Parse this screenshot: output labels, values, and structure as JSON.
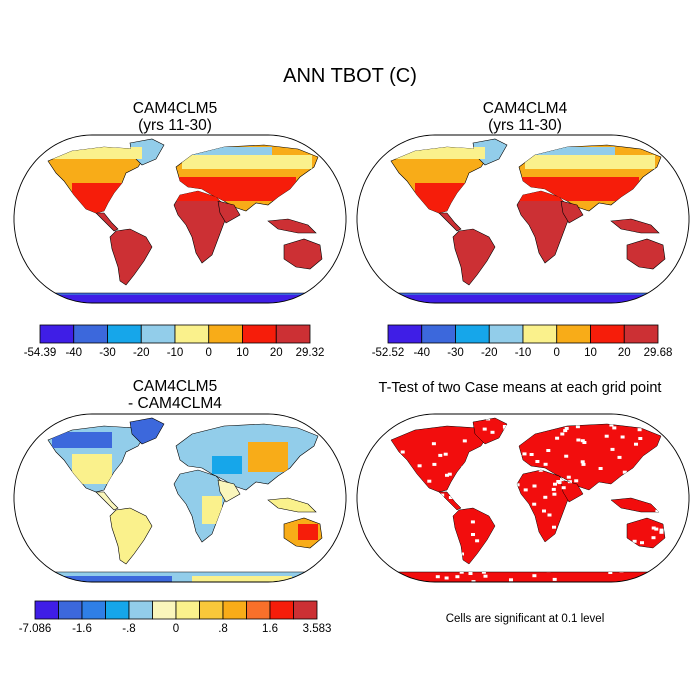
{
  "main_title": "ANN TBOT (C)",
  "chart_data": [
    {
      "type": "heatmap",
      "title_line1": "CAM4CLM5",
      "title_line2": "(yrs 11-30)",
      "variable": "ANN TBOT",
      "units": "C",
      "colorbar": {
        "tick_labels": [
          "-54.39",
          "-40",
          "-30",
          "-20",
          "-10",
          "0",
          "10",
          "20",
          "29.32"
        ],
        "colors": [
          "#3f1ee6",
          "#3c68dc",
          "#16a6ea",
          "#92cdea",
          "#faf18c",
          "#f8ac18",
          "#f61d0a",
          "#cc3034"
        ],
        "min": -54.39,
        "max": 29.32
      }
    },
    {
      "type": "heatmap",
      "title_line1": "CAM4CLM4",
      "title_line2": "(yrs 11-30)",
      "variable": "ANN TBOT",
      "units": "C",
      "colorbar": {
        "tick_labels": [
          "-52.52",
          "-40",
          "-30",
          "-20",
          "-10",
          "0",
          "10",
          "20",
          "29.68"
        ],
        "colors": [
          "#3f1ee6",
          "#3c68dc",
          "#16a6ea",
          "#92cdea",
          "#faf18c",
          "#f8ac18",
          "#f61d0a",
          "#cc3034"
        ],
        "min": -52.52,
        "max": 29.68
      }
    },
    {
      "type": "heatmap",
      "title_line1": "CAM4CLM5",
      "title_line2": "- CAM4CLM4",
      "variable": "ANN TBOT difference",
      "units": "C",
      "colorbar": {
        "tick_labels": [
          "-7.086",
          "",
          "-1.6",
          "",
          "-.8",
          "",
          "0",
          "",
          ".8",
          "",
          "1.6",
          "",
          "3.583"
        ],
        "colors": [
          "#3f1ee6",
          "#3c68dc",
          "#2f7fe6",
          "#16a6ea",
          "#92cdea",
          "#faf6bc",
          "#faf18c",
          "#f8c83a",
          "#f8ac18",
          "#f8702a",
          "#f61d0a",
          "#cc3034"
        ],
        "min": -7.086,
        "max": 3.583
      }
    },
    {
      "type": "heatmap",
      "title": "T-Test of two Case means at each grid point",
      "note": "Cells are significant at 0.1 level",
      "significance_level": 0.1,
      "colors": [
        "#f20d0d"
      ]
    }
  ]
}
